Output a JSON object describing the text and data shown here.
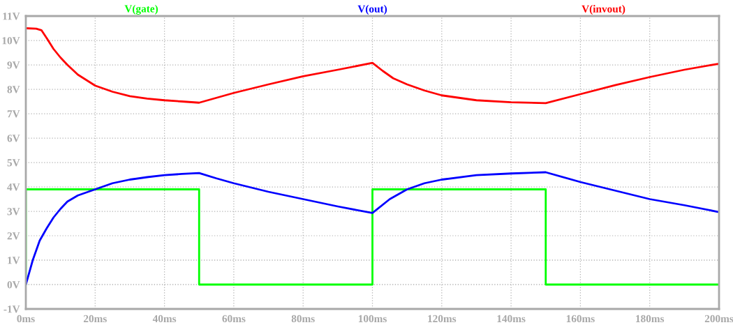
{
  "chart_data": {
    "type": "line",
    "xlim": [
      0,
      200
    ],
    "ylim": [
      -1,
      11
    ],
    "xticks": [
      {
        "value": 0,
        "label": "0ms"
      },
      {
        "value": 20,
        "label": "20ms"
      },
      {
        "value": 40,
        "label": "40ms"
      },
      {
        "value": 60,
        "label": "60ms"
      },
      {
        "value": 80,
        "label": "80ms"
      },
      {
        "value": 100,
        "label": "100ms"
      },
      {
        "value": 120,
        "label": "120ms"
      },
      {
        "value": 140,
        "label": "140ms"
      },
      {
        "value": 160,
        "label": "160ms"
      },
      {
        "value": 180,
        "label": "180ms"
      },
      {
        "value": 200,
        "label": "200ms"
      }
    ],
    "yticks": [
      {
        "value": -1,
        "label": "-1V"
      },
      {
        "value": 0,
        "label": "0V"
      },
      {
        "value": 1,
        "label": "1V"
      },
      {
        "value": 2,
        "label": "2V"
      },
      {
        "value": 3,
        "label": "3V"
      },
      {
        "value": 4,
        "label": "4V"
      },
      {
        "value": 5,
        "label": "5V"
      },
      {
        "value": 6,
        "label": "6V"
      },
      {
        "value": 7,
        "label": "7V"
      },
      {
        "value": 8,
        "label": "8V"
      },
      {
        "value": 9,
        "label": "9V"
      },
      {
        "value": 10,
        "label": "10V"
      },
      {
        "value": 11,
        "label": "11V"
      }
    ],
    "grid": true,
    "marker": "none",
    "line_style": "solid",
    "legend": "top",
    "series": [
      {
        "name": "V(gate)",
        "color": "#00ff00",
        "x": [
          0,
          0,
          50,
          50,
          100,
          100,
          150,
          150,
          200
        ],
        "values": [
          0,
          3.9,
          3.9,
          0,
          0,
          3.9,
          3.9,
          0,
          0
        ]
      },
      {
        "name": "V(out)",
        "color": "#0000ff",
        "x": [
          0,
          2,
          4,
          6,
          8,
          10,
          12,
          15,
          20,
          25,
          30,
          35,
          40,
          45,
          50,
          55,
          60,
          70,
          80,
          90,
          100,
          105,
          110,
          115,
          120,
          130,
          140,
          150,
          160,
          170,
          180,
          190,
          200
        ],
        "values": [
          0,
          1.0,
          1.8,
          2.3,
          2.75,
          3.1,
          3.4,
          3.65,
          3.9,
          4.15,
          4.3,
          4.4,
          4.48,
          4.53,
          4.57,
          4.35,
          4.15,
          3.8,
          3.5,
          3.2,
          2.93,
          3.5,
          3.9,
          4.15,
          4.3,
          4.48,
          4.55,
          4.6,
          4.2,
          3.85,
          3.5,
          3.25,
          2.97
        ]
      },
      {
        "name": "V(invout)",
        "color": "#ff0000",
        "x": [
          0,
          3,
          4.5,
          6,
          8,
          10,
          12,
          15,
          20,
          25,
          30,
          35,
          40,
          45,
          50,
          60,
          70,
          80,
          90,
          100,
          103,
          106,
          110,
          115,
          120,
          130,
          140,
          150,
          160,
          170,
          180,
          190,
          200
        ],
        "values": [
          10.5,
          10.48,
          10.42,
          10.1,
          9.65,
          9.3,
          9.0,
          8.6,
          8.15,
          7.9,
          7.72,
          7.62,
          7.55,
          7.5,
          7.45,
          7.85,
          8.2,
          8.53,
          8.8,
          9.08,
          8.75,
          8.45,
          8.2,
          7.95,
          7.75,
          7.55,
          7.47,
          7.43,
          7.8,
          8.17,
          8.5,
          8.8,
          9.05
        ]
      }
    ]
  }
}
